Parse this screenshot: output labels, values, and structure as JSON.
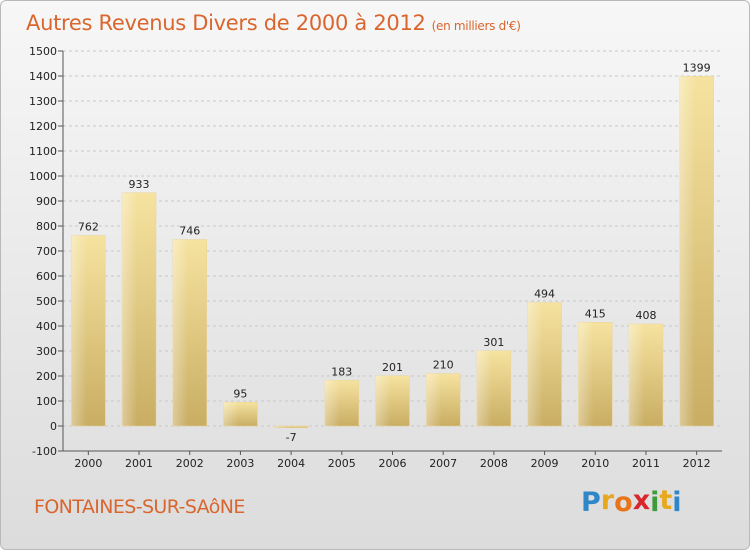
{
  "title": "Autres Revenus Divers de 2000 à 2012",
  "title_unit": "(en milliers d'€)",
  "place": "FONTAINES-SUR-SAôNE",
  "logo": {
    "letters": [
      "P",
      "r",
      "o",
      "x",
      "i",
      "t",
      "i"
    ],
    "colors": [
      "#2f86c8",
      "#e8a81b",
      "#e8751b",
      "#d9262c",
      "#3f9a3c",
      "#e8a81b",
      "#2f86c8"
    ]
  },
  "colors": {
    "bar_light": "#f6e3a0",
    "bar_dark": "#c9ad63",
    "grid": "#c8c8c8",
    "title": "#d9662e"
  },
  "chart_data": {
    "type": "bar",
    "title": "Autres Revenus Divers de 2000 à 2012",
    "xlabel": "",
    "ylabel": "",
    "categories": [
      "2000",
      "2001",
      "2002",
      "2003",
      "2004",
      "2005",
      "2006",
      "2007",
      "2008",
      "2009",
      "2010",
      "2011",
      "2012"
    ],
    "values": [
      762,
      933,
      746,
      95,
      -7,
      183,
      201,
      210,
      301,
      494,
      415,
      408,
      1399
    ],
    "ylim": [
      -100,
      1500
    ],
    "ytick_step": 100,
    "grid": true
  }
}
